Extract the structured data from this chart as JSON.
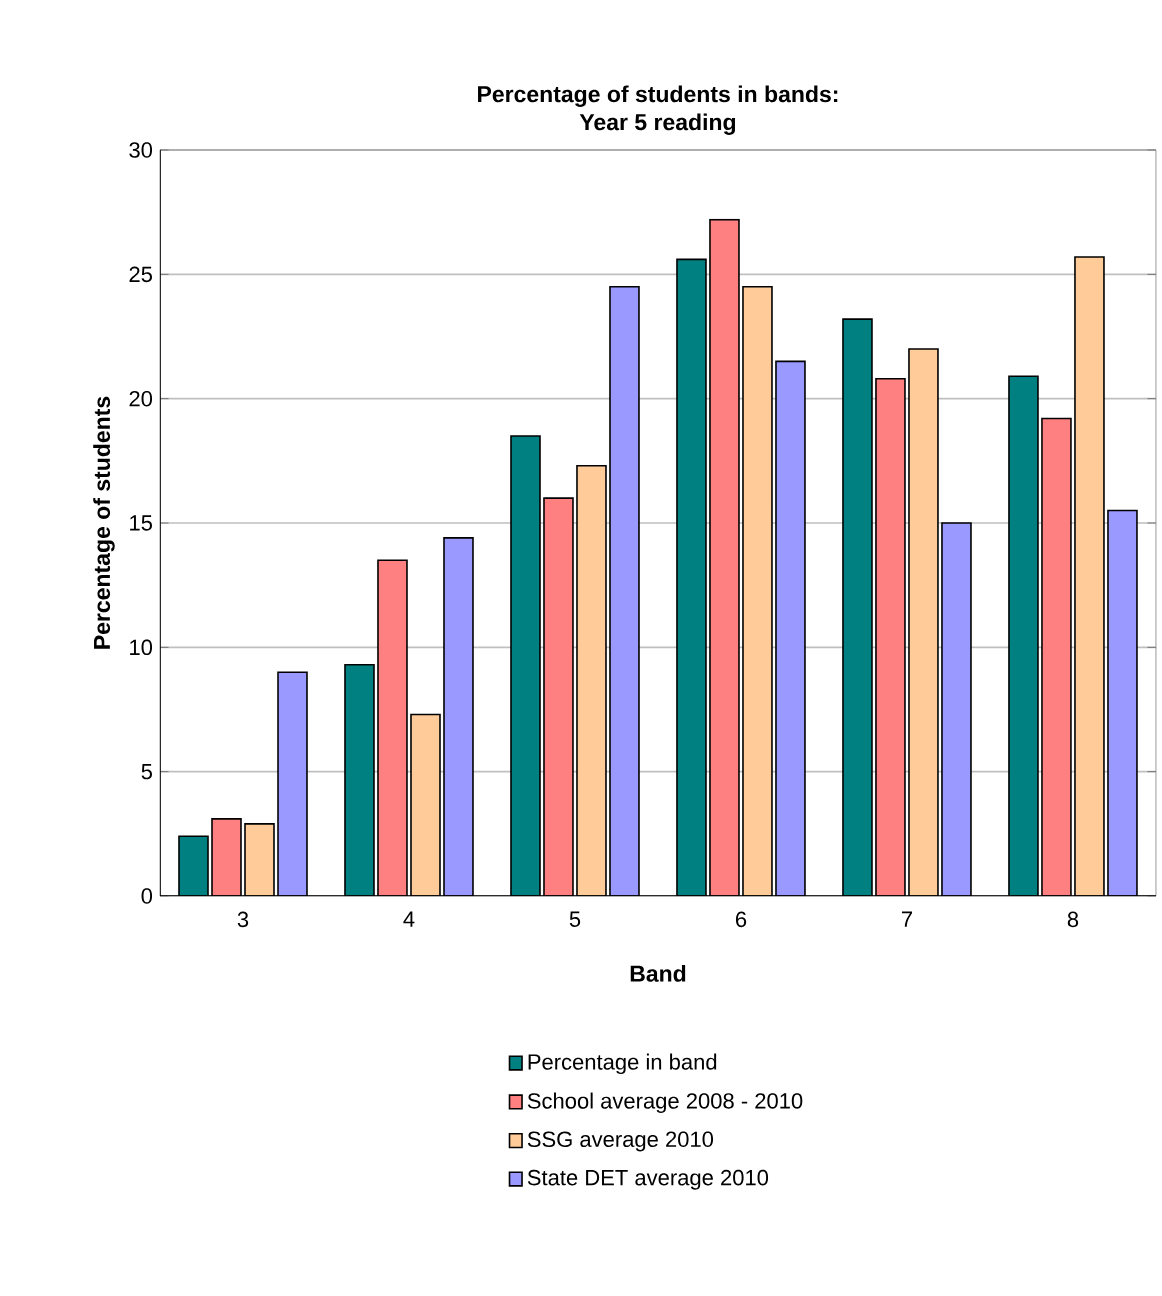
{
  "chart_data": {
    "type": "bar",
    "title": "Percentage of students in bands:\nYear 5 reading",
    "xlabel": "Band",
    "ylabel": "Percentage of students",
    "categories": [
      "3",
      "4",
      "5",
      "6",
      "7",
      "8"
    ],
    "series": [
      {
        "name": "Percentage in band",
        "color": "#008080",
        "values": [
          2.4,
          9.3,
          18.5,
          25.6,
          23.2,
          20.9
        ]
      },
      {
        "name": "School average 2008 - 2010",
        "color": "#ff8080",
        "values": [
          3.1,
          13.5,
          16.0,
          27.2,
          20.8,
          19.2
        ]
      },
      {
        "name": "SSG average 2010",
        "color": "#ffcc99",
        "values": [
          2.9,
          7.3,
          17.3,
          24.5,
          22.0,
          25.7
        ]
      },
      {
        "name": "State DET average 2010",
        "color": "#9999ff",
        "values": [
          9.0,
          14.4,
          24.5,
          21.5,
          15.0,
          15.5
        ]
      }
    ],
    "ylim": [
      0,
      30
    ],
    "yticks": [
      0,
      5,
      10,
      15,
      20,
      25,
      30
    ],
    "grid": "y",
    "legend": "bottom"
  }
}
